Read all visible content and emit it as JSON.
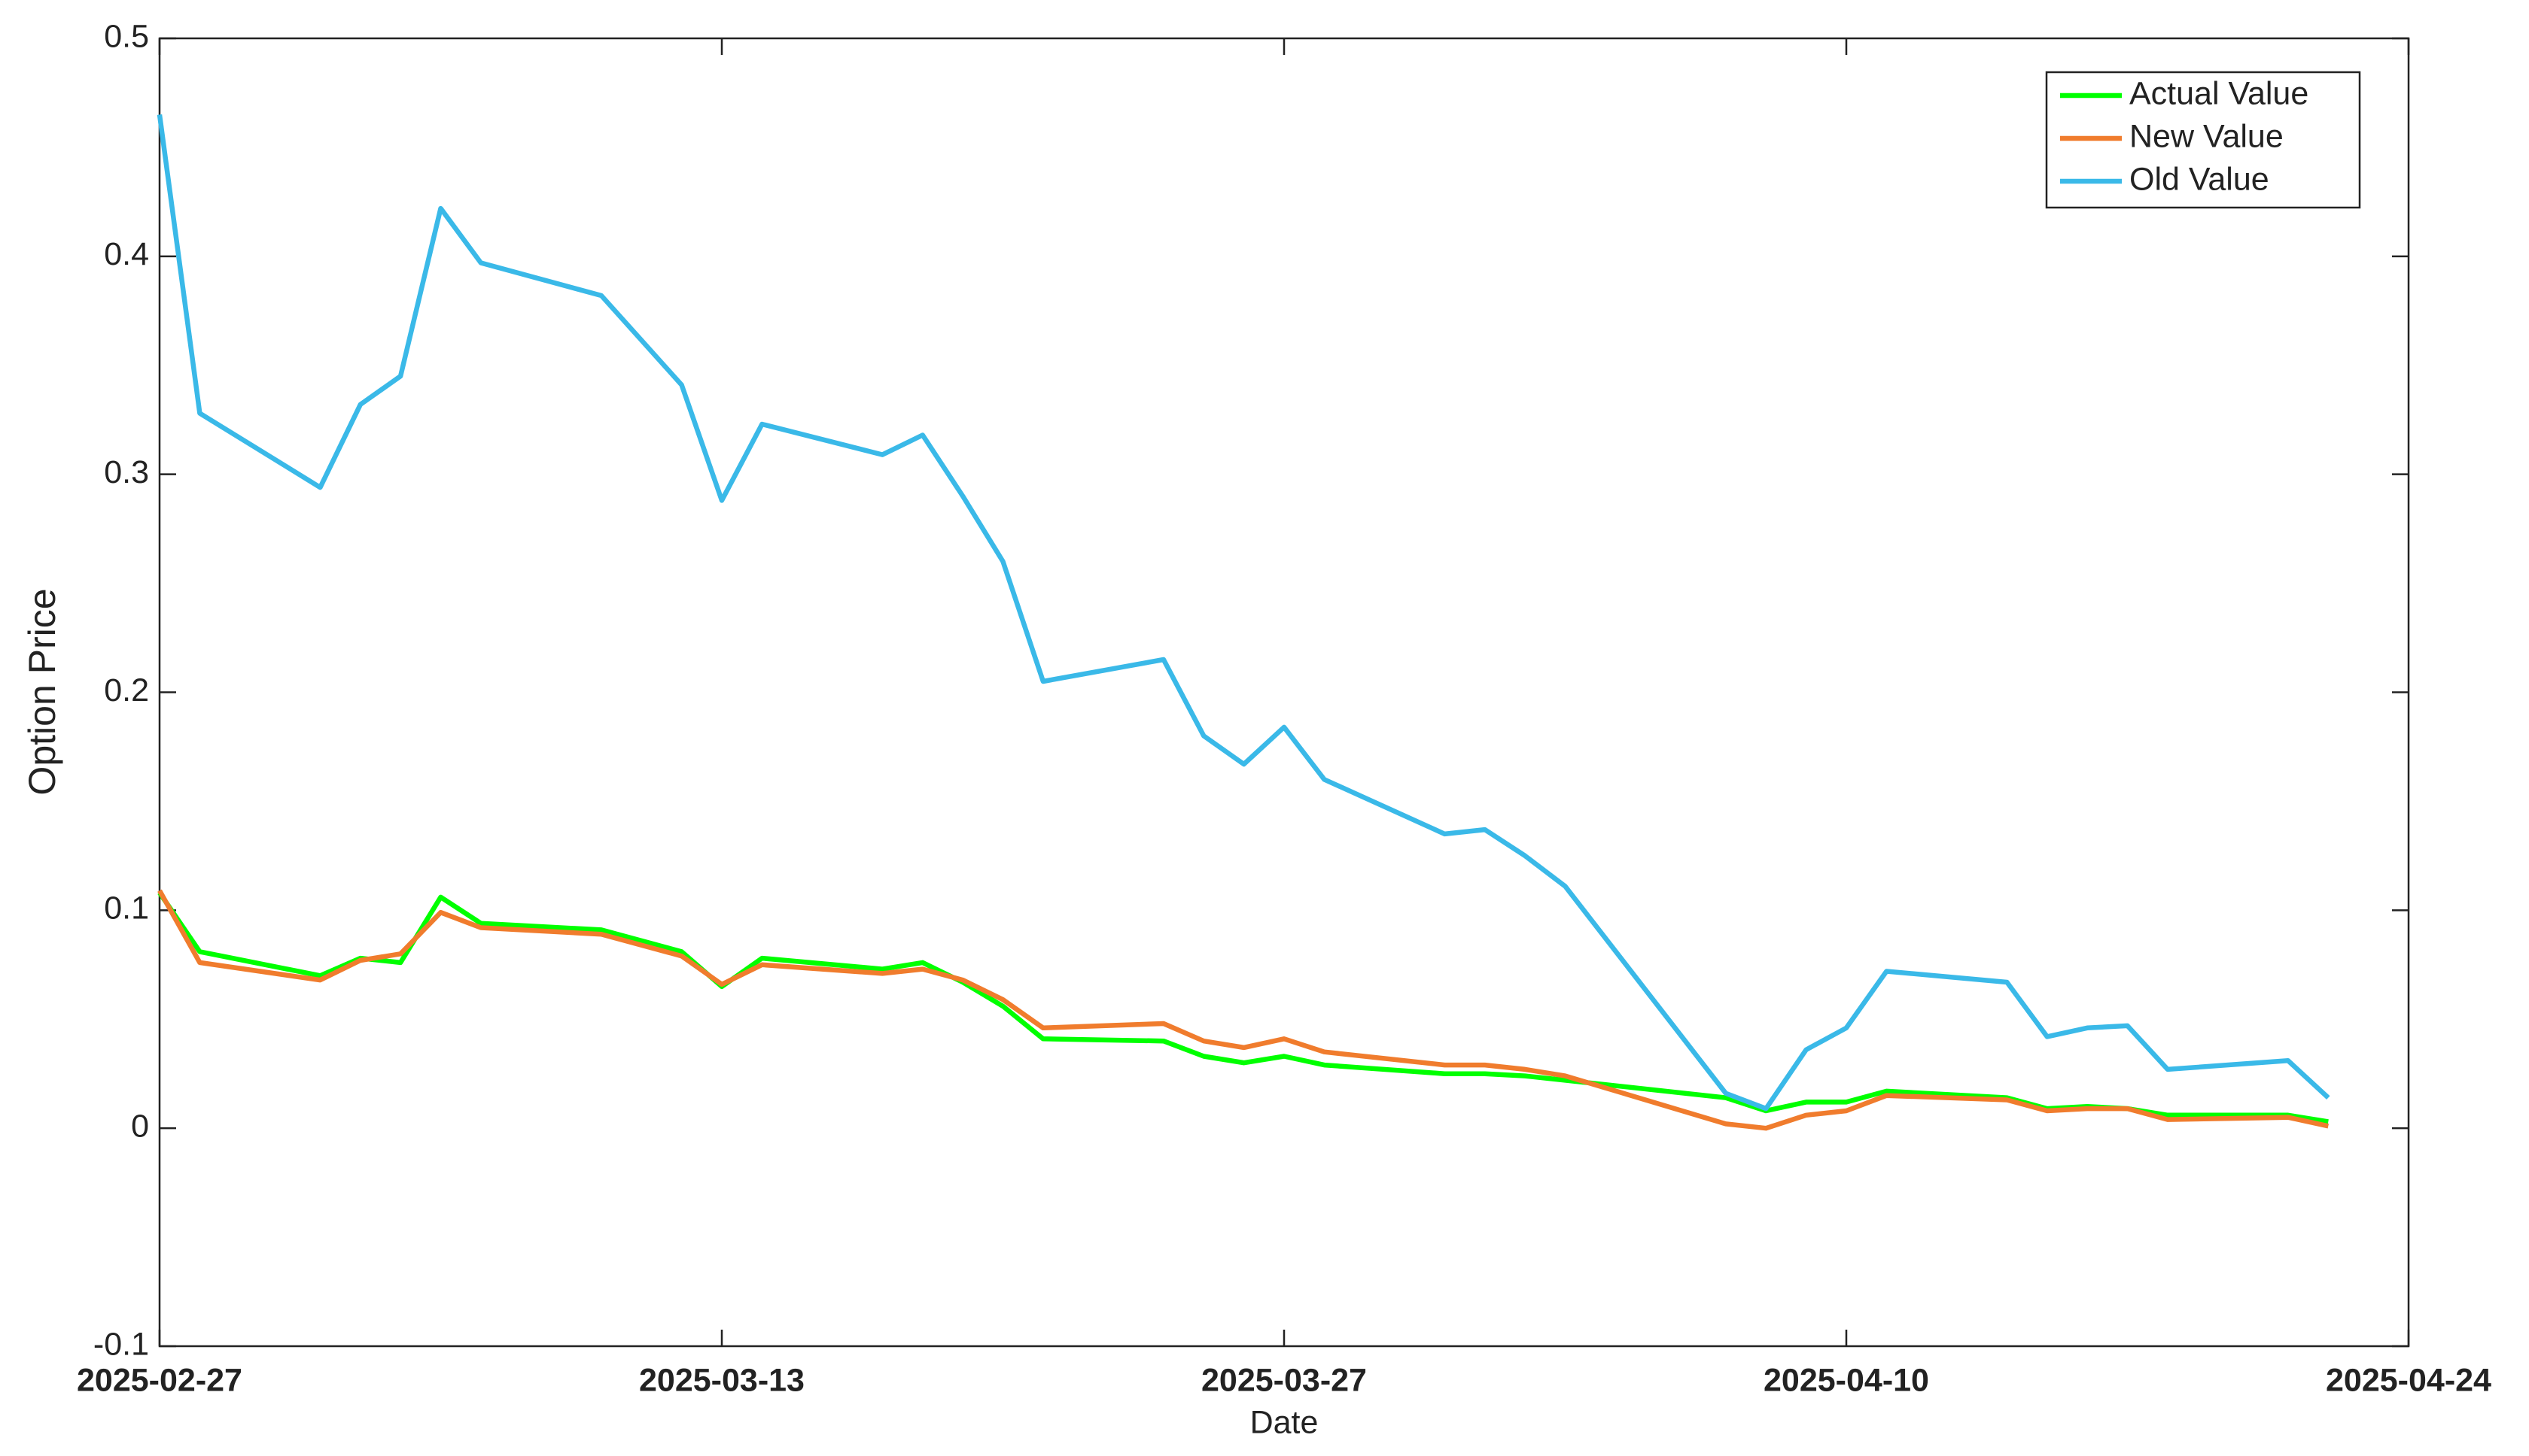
{
  "chart_data": {
    "type": "line",
    "x_label": "Date",
    "y_label": "Option Price",
    "x": [
      "2025-02-27",
      "2025-02-28",
      "2025-03-03",
      "2025-03-04",
      "2025-03-05",
      "2025-03-06",
      "2025-03-07",
      "2025-03-10",
      "2025-03-12",
      "2025-03-13",
      "2025-03-14",
      "2025-03-17",
      "2025-03-18",
      "2025-03-19",
      "2025-03-20",
      "2025-03-21",
      "2025-03-24",
      "2025-03-25",
      "2025-03-26",
      "2025-03-27",
      "2025-03-28",
      "2025-03-31",
      "2025-04-01",
      "2025-04-02",
      "2025-04-03",
      "2025-04-07",
      "2025-04-08",
      "2025-04-09",
      "2025-04-10",
      "2025-04-11",
      "2025-04-14",
      "2025-04-15",
      "2025-04-16",
      "2025-04-17",
      "2025-04-18",
      "2025-04-21",
      "2025-04-22"
    ],
    "series": [
      {
        "name": "Actual Value",
        "color": "#00ff00",
        "values": [
          0.108,
          0.081,
          0.07,
          0.078,
          0.076,
          0.106,
          0.094,
          0.091,
          0.081,
          0.065,
          0.078,
          0.073,
          0.076,
          0.067,
          0.056,
          0.041,
          0.04,
          0.033,
          0.03,
          0.033,
          0.029,
          0.025,
          0.025,
          0.024,
          0.022,
          0.014,
          0.008,
          0.012,
          0.012,
          0.017,
          0.014,
          0.009,
          0.01,
          0.009,
          0.006,
          0.006,
          0.003
        ]
      },
      {
        "name": "New Value",
        "color": "#f07c2d",
        "values": [
          0.109,
          0.076,
          0.068,
          0.077,
          0.08,
          0.099,
          0.092,
          0.089,
          0.079,
          0.066,
          0.075,
          0.071,
          0.073,
          0.068,
          0.059,
          0.046,
          0.048,
          0.04,
          0.037,
          0.041,
          0.035,
          0.029,
          0.029,
          0.027,
          0.024,
          0.002,
          0.0,
          0.006,
          0.008,
          0.015,
          0.013,
          0.008,
          0.009,
          0.009,
          0.004,
          0.005,
          0.001
        ]
      },
      {
        "name": "Old Value",
        "color": "#3ab9e8",
        "values": [
          0.465,
          0.328,
          0.294,
          0.332,
          0.345,
          0.422,
          0.397,
          0.382,
          0.341,
          0.288,
          0.323,
          0.309,
          0.318,
          0.29,
          0.26,
          0.205,
          0.215,
          0.18,
          0.167,
          0.184,
          0.16,
          0.135,
          0.137,
          0.125,
          0.111,
          0.016,
          0.009,
          0.036,
          0.046,
          0.072,
          0.067,
          0.042,
          0.046,
          0.047,
          0.027,
          0.031,
          0.014
        ]
      }
    ],
    "xlim": [
      "2025-02-27",
      "2025-04-24"
    ],
    "xticks": [
      "2025-02-27",
      "2025-03-13",
      "2025-03-27",
      "2025-04-10",
      "2025-04-24"
    ],
    "ylim": [
      -0.1,
      0.5
    ],
    "yticks": [
      -0.1,
      0,
      0.1,
      0.2,
      0.3,
      0.4,
      0.5
    ],
    "grid": false,
    "legend": "upper right"
  }
}
